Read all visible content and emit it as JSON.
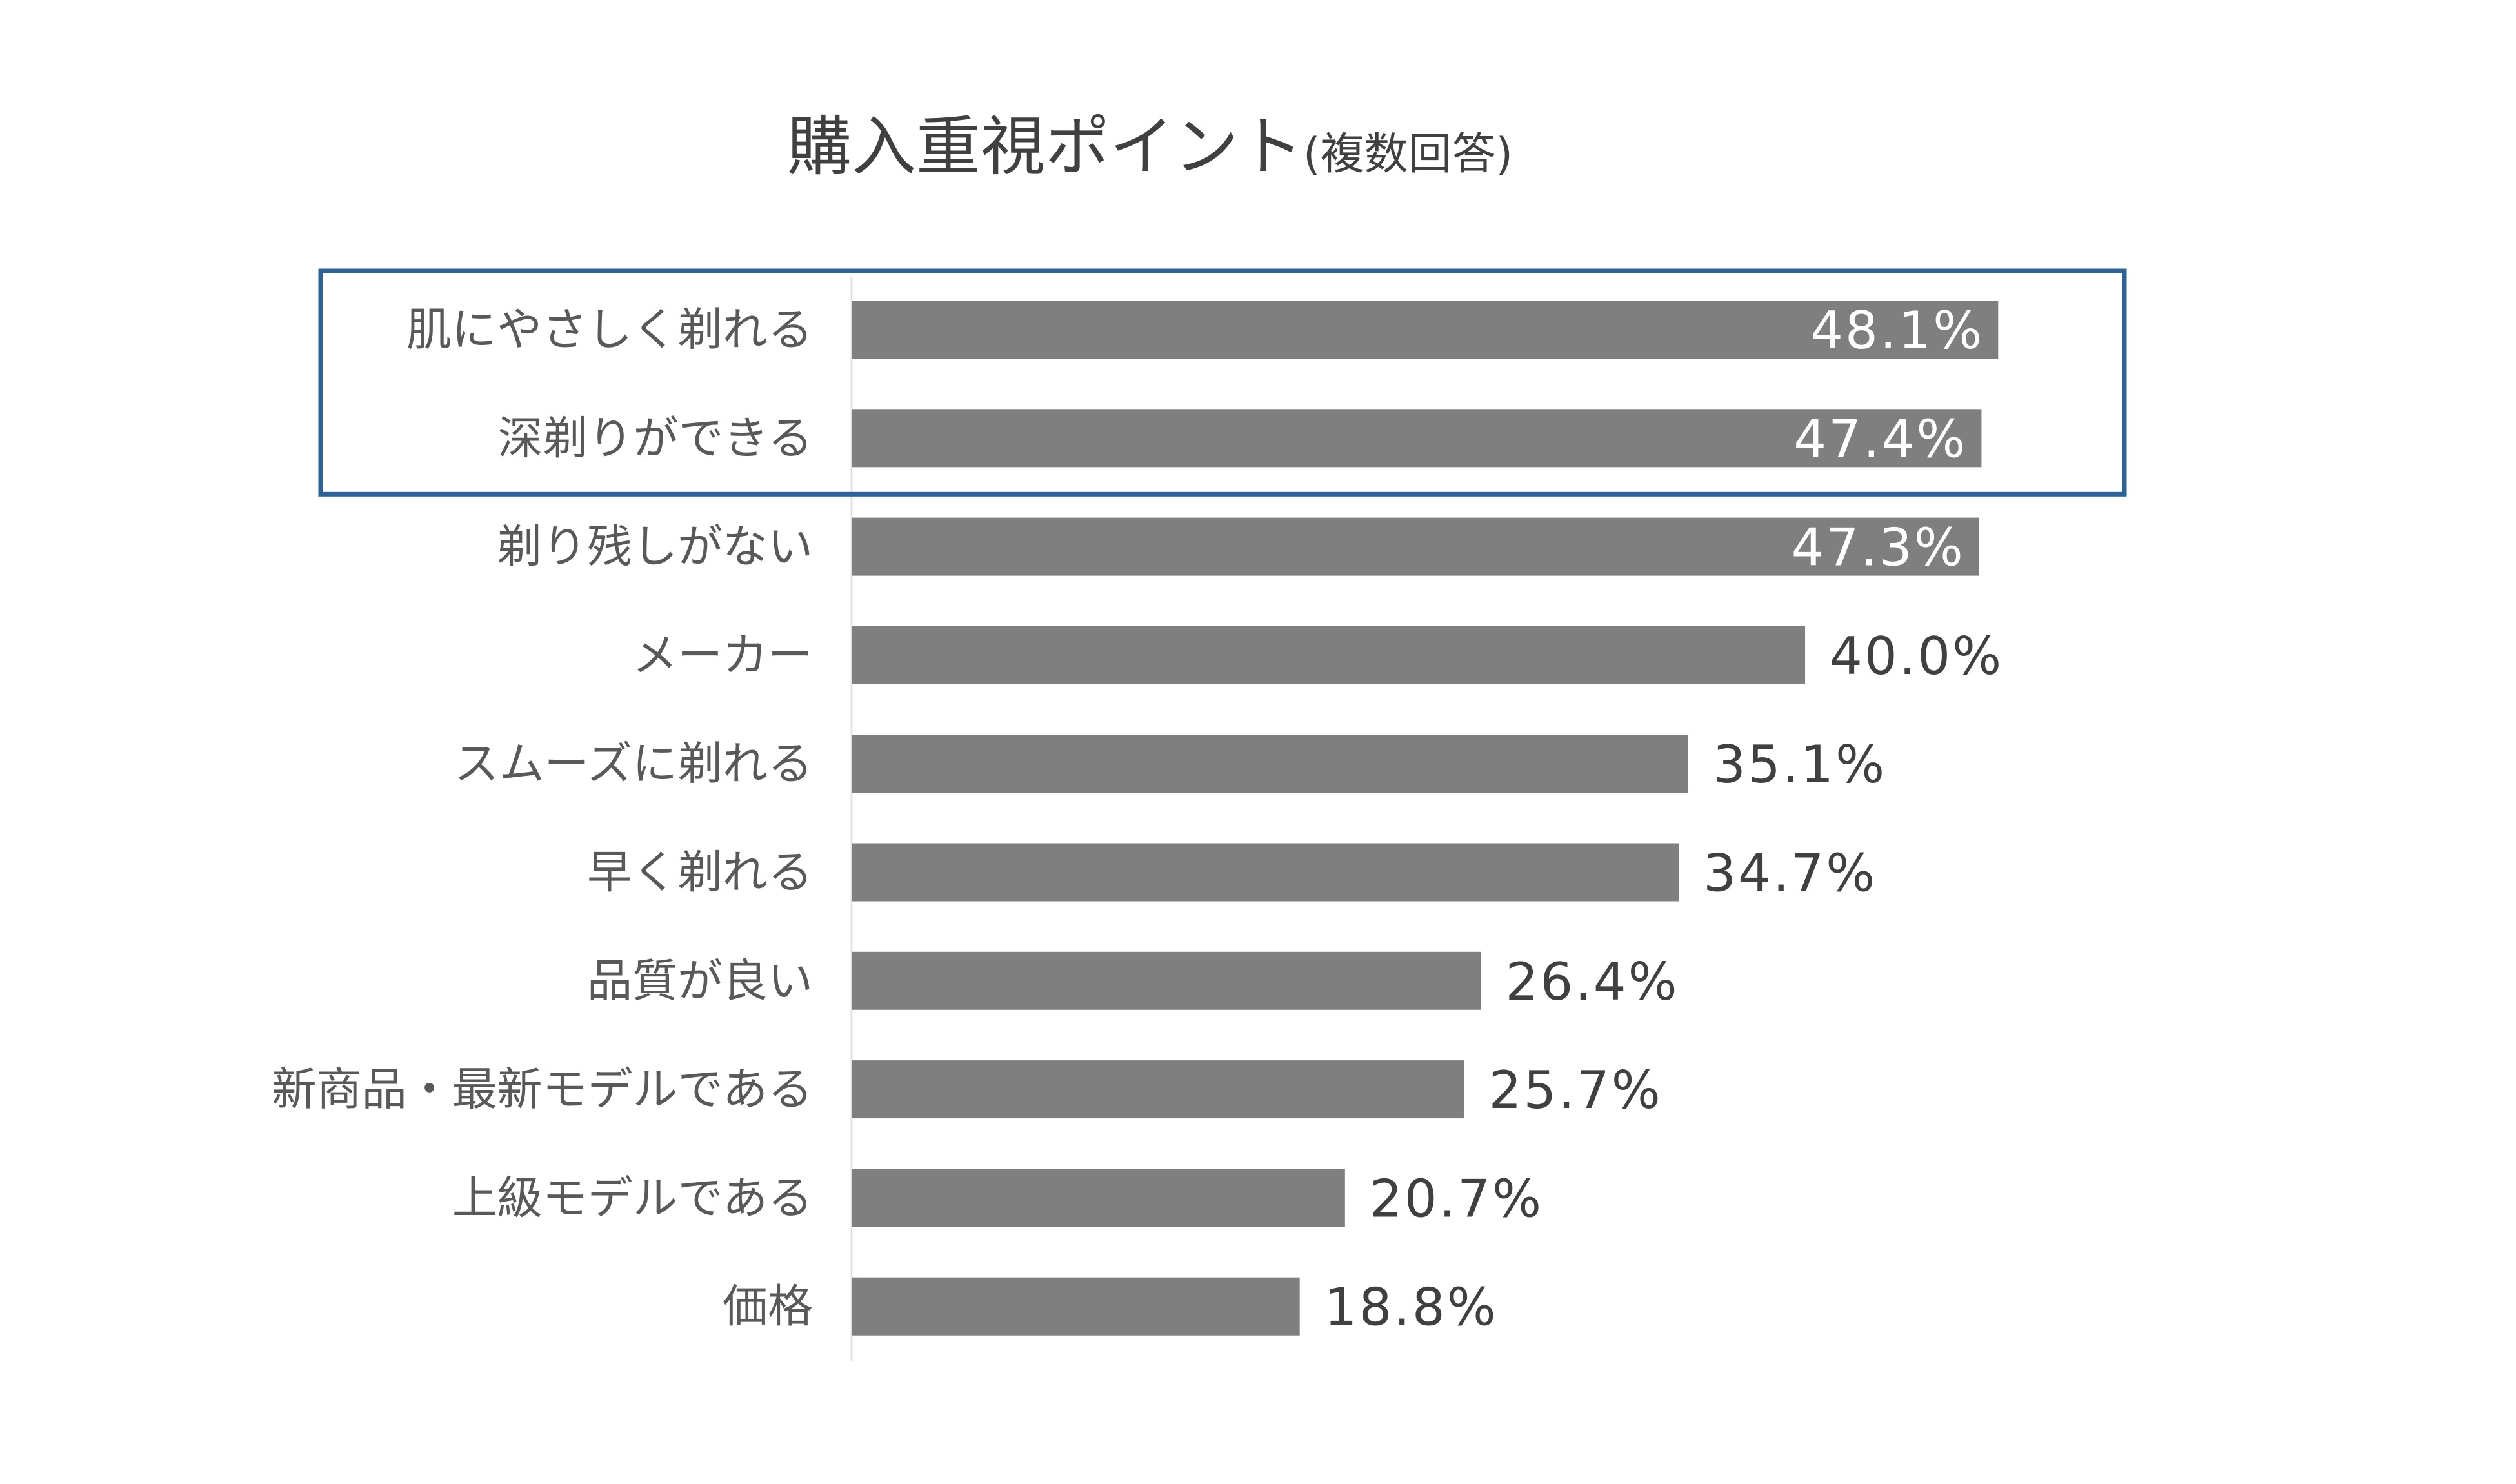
{
  "chart_data": {
    "type": "bar",
    "orientation": "horizontal",
    "title": "購入重視ポイント",
    "subtitle": "(複数回答)",
    "categories": [
      "肌にやさしく剃れる",
      "深剃りができる",
      "剃り残しがない",
      "メーカー",
      "スムーズに剃れる",
      "早く剃れる",
      "品質が良い",
      "新商品・最新モデルである",
      "上級モデルである",
      "価格"
    ],
    "values": [
      48.1,
      47.4,
      47.3,
      40.0,
      35.1,
      34.7,
      26.4,
      25.7,
      20.7,
      18.8
    ],
    "value_labels": [
      "48.1%",
      "47.4%",
      "47.3%",
      "40.0%",
      "35.1%",
      "34.7%",
      "26.4%",
      "25.7%",
      "20.7%",
      "18.8%"
    ],
    "highlighted_categories": [
      "肌にやさしく剃れる",
      "深剃りができる"
    ],
    "xlim": [
      0,
      60
    ],
    "xlabel": "",
    "ylabel": "",
    "grid": false,
    "legend": "none",
    "colors": {
      "bar": "#7f7f7f",
      "highlight_border": "#2e6295",
      "label_inside": "#ffffff",
      "label_outside": "#404040",
      "axis_line": "#e3e3e3"
    }
  }
}
